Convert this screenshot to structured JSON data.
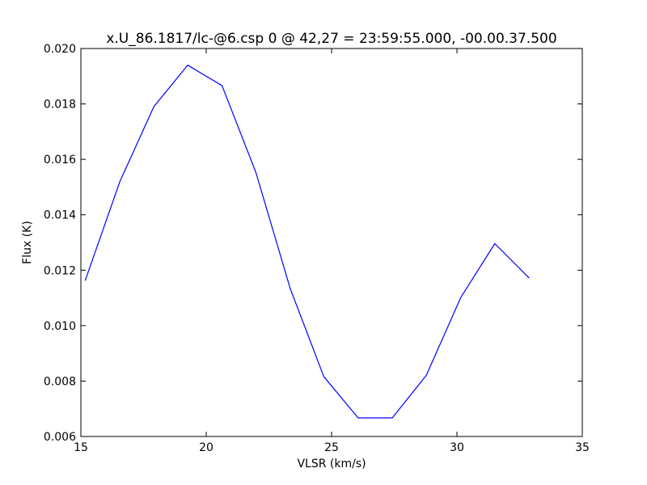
{
  "chart_data": {
    "type": "line",
    "title": "x.U_86.1817/lc-@6.csp 0 @ 42,27 = 23:59:55.000, -00.00.37.500",
    "xlabel": "VLSR (km/s)",
    "ylabel": "Flux (K)",
    "xlim": [
      15,
      35
    ],
    "ylim": [
      0.006,
      0.02
    ],
    "x_ticks": [
      15,
      20,
      25,
      30,
      35
    ],
    "y_ticks": [
      0.006,
      0.008,
      0.01,
      0.012,
      0.014,
      0.016,
      0.018,
      0.02
    ],
    "x_tick_labels": [
      "15",
      "20",
      "25",
      "30",
      "35"
    ],
    "y_tick_labels": [
      "0.006",
      "0.008",
      "0.010",
      "0.012",
      "0.014",
      "0.016",
      "0.018",
      "0.020"
    ],
    "grid": false,
    "series": [
      {
        "color": "#0000ff",
        "x": [
          15.17,
          16.56,
          17.91,
          19.26,
          20.63,
          21.98,
          23.35,
          24.69,
          26.06,
          27.42,
          28.78,
          30.15,
          31.51,
          32.88
        ],
        "y": [
          0.01162,
          0.01521,
          0.0179,
          0.0194,
          0.01866,
          0.01553,
          0.01134,
          0.00816,
          0.00667,
          0.00667,
          0.00821,
          0.01101,
          0.01296,
          0.01172
        ]
      }
    ]
  }
}
